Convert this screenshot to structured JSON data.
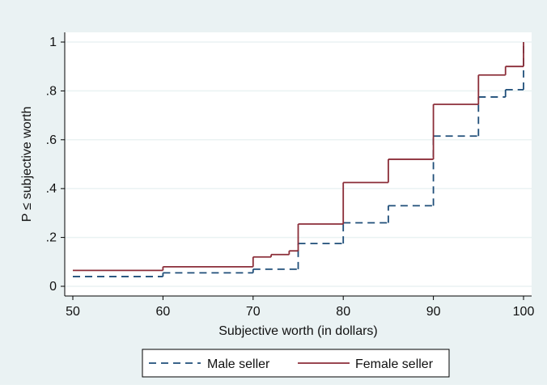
{
  "chart_data": {
    "type": "line",
    "step": true,
    "xlabel": "Subjective worth (in dollars)",
    "ylabel": "P ≤ subjective worth",
    "xlim": [
      50,
      100
    ],
    "ylim": [
      0,
      1
    ],
    "x_ticks": [
      50,
      60,
      70,
      80,
      90,
      100
    ],
    "x_tick_labels": [
      "50",
      "60",
      "70",
      "80",
      "90",
      "100"
    ],
    "y_ticks": [
      0,
      0.2,
      0.4,
      0.6,
      0.8,
      1
    ],
    "y_tick_labels": [
      "0",
      ".2",
      ".4",
      ".6",
      ".8",
      "1"
    ],
    "grid": true,
    "legend_position": "bottom",
    "series": [
      {
        "name": "Male seller",
        "color": "#1f4e79",
        "dash": "dashed",
        "x": [
          50,
          60,
          70,
          75,
          80,
          85,
          90,
          95,
          98,
          100
        ],
        "y": [
          0.04,
          0.055,
          0.07,
          0.175,
          0.26,
          0.33,
          0.615,
          0.775,
          0.805,
          1.0
        ]
      },
      {
        "name": "Female seller",
        "color": "#8b2d38",
        "dash": "solid",
        "x": [
          50,
          60,
          70,
          72,
          74,
          75,
          80,
          85,
          90,
          95,
          98,
          100
        ],
        "y": [
          0.065,
          0.08,
          0.12,
          0.13,
          0.145,
          0.255,
          0.425,
          0.52,
          0.745,
          0.865,
          0.9,
          1.0
        ]
      }
    ]
  },
  "colors": {
    "outer_background": "#eaf2f3",
    "plot_background": "#ffffff",
    "grid": "#eaf2f3",
    "axis": "#000000"
  }
}
